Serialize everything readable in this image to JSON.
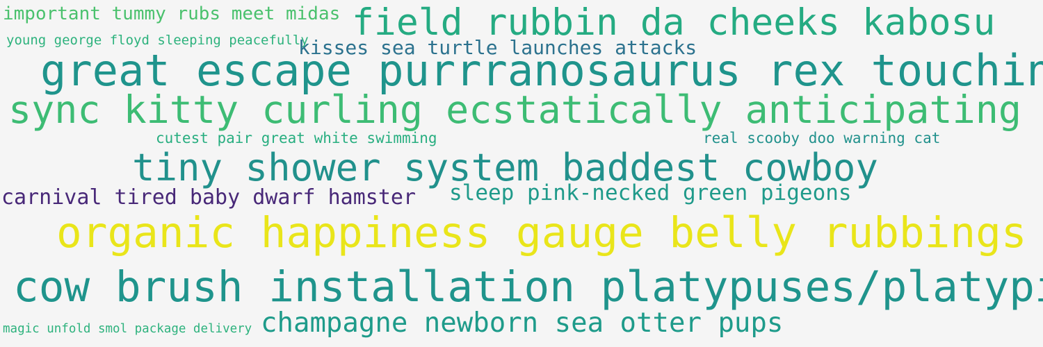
{
  "words": [
    {
      "text": "important tummy rubs meet midas",
      "color": "#4ac16d"
    },
    {
      "text": "field rubbin da cheeks kabosu",
      "color": "#25ab82"
    },
    {
      "text": "young george floyd sleeping peacefully",
      "color": "#2db27d"
    },
    {
      "text": "kisses sea turtle launches attacks",
      "color": "#2c728e"
    },
    {
      "text": "great escape purrranosaurus rex touching",
      "color": "#1f948c"
    },
    {
      "text": "sync kitty curling ecstatically anticipating",
      "color": "#3dbc74"
    },
    {
      "text": "cutest pair great white swimming",
      "color": "#28ae80"
    },
    {
      "text": "real scooby doo warning cat",
      "color": "#21918c"
    },
    {
      "text": "tiny shower system baddest cowboy",
      "color": "#21918c"
    },
    {
      "text": "sleep pink-necked green pigeons",
      "color": "#1f9a8a"
    },
    {
      "text": "carnival tired baby dwarf hamster",
      "color": "#482878"
    },
    {
      "text": "organic happiness gauge belly rubbings",
      "color": "#e9e51a"
    },
    {
      "text": "cow brush installation platypuses/platypi",
      "color": "#1f948c"
    },
    {
      "text": "champagne newborn sea otter pups",
      "color": "#1e9b8a"
    },
    {
      "text": "magic unfold smol package delivery",
      "color": "#2db27d"
    }
  ]
}
